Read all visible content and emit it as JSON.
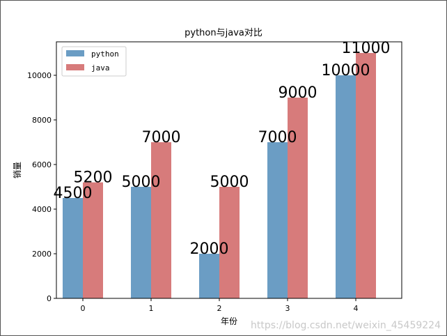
{
  "chart_data": {
    "type": "bar",
    "title": "python与java对比",
    "xlabel": "年份",
    "ylabel": "销量",
    "categories": [
      "0",
      "1",
      "2",
      "3",
      "4"
    ],
    "series": [
      {
        "name": "python",
        "values": [
          4500,
          5000,
          2000,
          7000,
          10000
        ],
        "color": "#6b9dc4"
      },
      {
        "name": "java",
        "values": [
          5200,
          7000,
          5000,
          9000,
          11000
        ],
        "color": "#d77b7b"
      }
    ],
    "ylim": [
      0,
      11500
    ],
    "yticks": [
      0,
      2000,
      4000,
      6000,
      8000,
      10000
    ],
    "xticks": [
      "0",
      "1",
      "2",
      "3",
      "4"
    ],
    "grid": false,
    "legend": "top-left"
  },
  "watermark": "https://blog.csdn.net/weixin_45459224"
}
